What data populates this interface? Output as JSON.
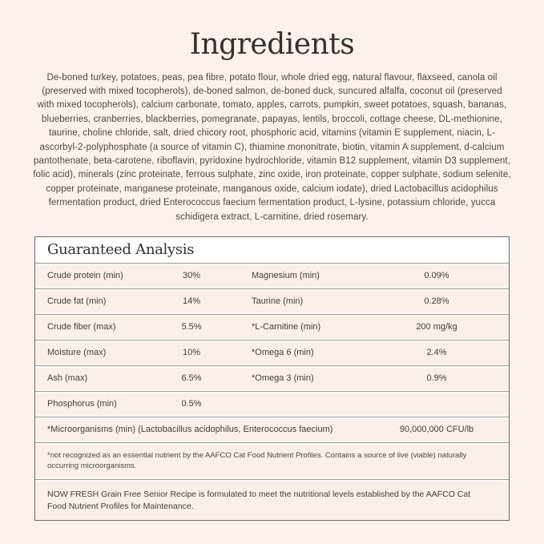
{
  "label": {
    "title": "Ingredients",
    "ingredients_text": "De-boned turkey, potatoes, peas, pea fibre, potato flour, whole dried egg, natural flavour, flaxseed, canola oil (preserved with mixed tocopherols), de-boned salmon, de-boned duck, suncured alfalfa, coconut oil (preserved with mixed tocopherols), calcium carbonate, tomato, apples, carrots, pumpkin, sweet potatoes, squash, bananas, blueberries, cranberries, blackberries, pomegranate, papayas, lentils, broccoli, cottage cheese, DL-methionine, taurine, choline chloride, salt, dried chicory root, phosphoric acid, vitamins (vitamin E supplement, niacin, L-ascorbyl-2-polyphosphate (a source of vitamin C), thiamine mononitrate, biotin, vitamin A supplement, d-calcium pantothenate, beta-carotene, riboflavin, pyridoxine hydrochloride, vitamin B12 supplement, vitamin D3 supplement, folic acid), minerals (zinc proteinate, ferrous sulphate, zinc oxide, iron proteinate, copper sulphate, sodium selenite, copper proteinate, manganese proteinate, manganous oxide, calcium iodate), dried Lactobacillus acidophilus fermentation product, dried Enterococcus faecium fermentation product, L-lysine, potassium chloride, yucca schidigera extract, L-carnitine, dried rosemary."
  },
  "guaranteed_analysis": {
    "heading": "Guaranteed Analysis",
    "rows": [
      {
        "label1": "Crude protein (min)",
        "value1": "30%",
        "label2": "Magnesium (min)",
        "value2": "0.09%"
      },
      {
        "label1": "Crude fat (min)",
        "value1": "14%",
        "label2": "Taurine (min)",
        "value2": "0.28%"
      },
      {
        "label1": "Crude fiber (max)",
        "value1": "5.5%",
        "label2": "*L-Carnitine (min)",
        "value2": "200 mg/kg"
      },
      {
        "label1": "Moisture (max)",
        "value1": "10%",
        "label2": "*Omega 6 (min)",
        "value2": "2.4%"
      },
      {
        "label1": "Ash (max)",
        "value1": "6.5%",
        "label2": "*Omega 3 (min)",
        "value2": "0.9%"
      },
      {
        "label1": "Phosphorus (min)",
        "value1": "0.5%",
        "label2": "",
        "value2": ""
      }
    ],
    "microorganisms_row": {
      "label": "*Microorganisms (min) (Lactobacillus acidophilus, Enterococcus faecium)",
      "value": "90,000,000 CFU/lb"
    },
    "footnote": "*not recognized as an essential nutrient by the AAFCO Cat Food Nutrient Profiles. Contains a source of live (viable) naturally occurring microorganisms.",
    "aafco_statement": "NOW FRESH Grain Free Senior Recipe is formulated to meet the nutritional levels established by the AAFCO Cat Food Nutrient Profiles for Maintenance."
  },
  "colors": {
    "page_background": "#fcf1ec",
    "row_background": "#fbefe9",
    "header_background": "#fffefd",
    "table_border": "#6e6a66",
    "divider_line": "#a19b95",
    "heading_text": "#34312e",
    "body_text": "#4b4744"
  }
}
